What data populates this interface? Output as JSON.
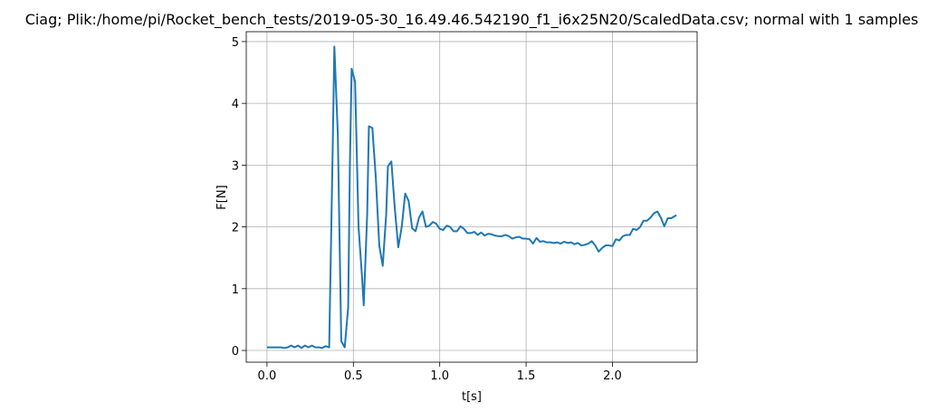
{
  "chart_data": {
    "type": "line",
    "title": "Ciag; Plik:/home/pi/Rocket_bench_tests/2019-05-30_16.49.46.542190_f1_i6x25N20/ScaledData.csv; normal with 1 samples",
    "xlabel": "t[s]",
    "ylabel": "F[N]",
    "color": "#1f77b4",
    "grid": true,
    "xlim": [
      -0.12,
      2.49
    ],
    "ylim": [
      -0.19,
      5.16
    ],
    "xticks": [
      {
        "value": 0,
        "label": "0.0"
      },
      0.5,
      {
        "value": 1,
        "label": "1.0"
      },
      1.5,
      {
        "value": 2,
        "label": "2.0"
      }
    ],
    "yticks": [
      0,
      1,
      2,
      3,
      4,
      5
    ],
    "x": [
      0,
      0.02,
      0.04,
      0.06,
      0.08,
      0.1,
      0.12,
      0.14,
      0.16,
      0.18,
      0.2,
      0.22,
      0.24,
      0.26,
      0.28,
      0.3,
      0.32,
      0.34,
      0.36,
      0.38,
      0.39,
      0.41,
      0.43,
      0.45,
      0.47,
      0.48,
      0.49,
      0.51,
      0.53,
      0.55,
      0.56,
      0.58,
      0.59,
      0.61,
      0.63,
      0.65,
      0.67,
      0.69,
      0.7,
      0.72,
      0.74,
      0.76,
      0.78,
      0.8,
      0.82,
      0.84,
      0.86,
      0.88,
      0.9,
      0.92,
      0.94,
      0.96,
      0.98,
      1.0,
      1.02,
      1.04,
      1.06,
      1.08,
      1.1,
      1.12,
      1.14,
      1.16,
      1.18,
      1.2,
      1.22,
      1.24,
      1.26,
      1.28,
      1.3,
      1.32,
      1.34,
      1.36,
      1.38,
      1.4,
      1.42,
      1.44,
      1.46,
      1.48,
      1.5,
      1.52,
      1.54,
      1.56,
      1.58,
      1.6,
      1.62,
      1.64,
      1.66,
      1.68,
      1.7,
      1.72,
      1.74,
      1.76,
      1.78,
      1.8,
      1.82,
      1.84,
      1.86,
      1.88,
      1.9,
      1.92,
      1.94,
      1.96,
      1.98,
      2.0,
      2.02,
      2.04,
      2.06,
      2.08,
      2.1,
      2.12,
      2.14,
      2.16,
      2.18,
      2.2,
      2.22,
      2.24,
      2.26,
      2.28,
      2.3,
      2.32,
      2.34,
      2.37
    ],
    "values": [
      0.05,
      0.05,
      0.05,
      0.05,
      0.05,
      0.04,
      0.05,
      0.08,
      0.05,
      0.08,
      0.04,
      0.08,
      0.05,
      0.08,
      0.05,
      0.05,
      0.04,
      0.07,
      0.05,
      3.2,
      4.92,
      3.5,
      0.15,
      0.05,
      0.7,
      3.0,
      4.56,
      4.35,
      2.0,
      1.2,
      0.73,
      2.2,
      3.63,
      3.6,
      2.8,
      1.7,
      1.37,
      2.2,
      2.98,
      3.06,
      2.3,
      1.67,
      2.0,
      2.54,
      2.42,
      1.98,
      1.93,
      2.15,
      2.25,
      2.0,
      2.02,
      2.08,
      2.05,
      1.97,
      1.95,
      2.02,
      2.0,
      1.93,
      1.93,
      2.01,
      1.97,
      1.9,
      1.9,
      1.92,
      1.87,
      1.91,
      1.86,
      1.89,
      1.88,
      1.86,
      1.85,
      1.85,
      1.87,
      1.85,
      1.81,
      1.83,
      1.84,
      1.81,
      1.81,
      1.8,
      1.73,
      1.82,
      1.76,
      1.77,
      1.75,
      1.75,
      1.74,
      1.75,
      1.73,
      1.76,
      1.74,
      1.75,
      1.72,
      1.74,
      1.7,
      1.71,
      1.73,
      1.77,
      1.7,
      1.6,
      1.66,
      1.7,
      1.7,
      1.69,
      1.8,
      1.78,
      1.85,
      1.87,
      1.87,
      1.97,
      1.95,
      2.0,
      2.1,
      2.1,
      2.15,
      2.22,
      2.25,
      2.15,
      2.01,
      2.14,
      2.14,
      2.19
    ]
  }
}
